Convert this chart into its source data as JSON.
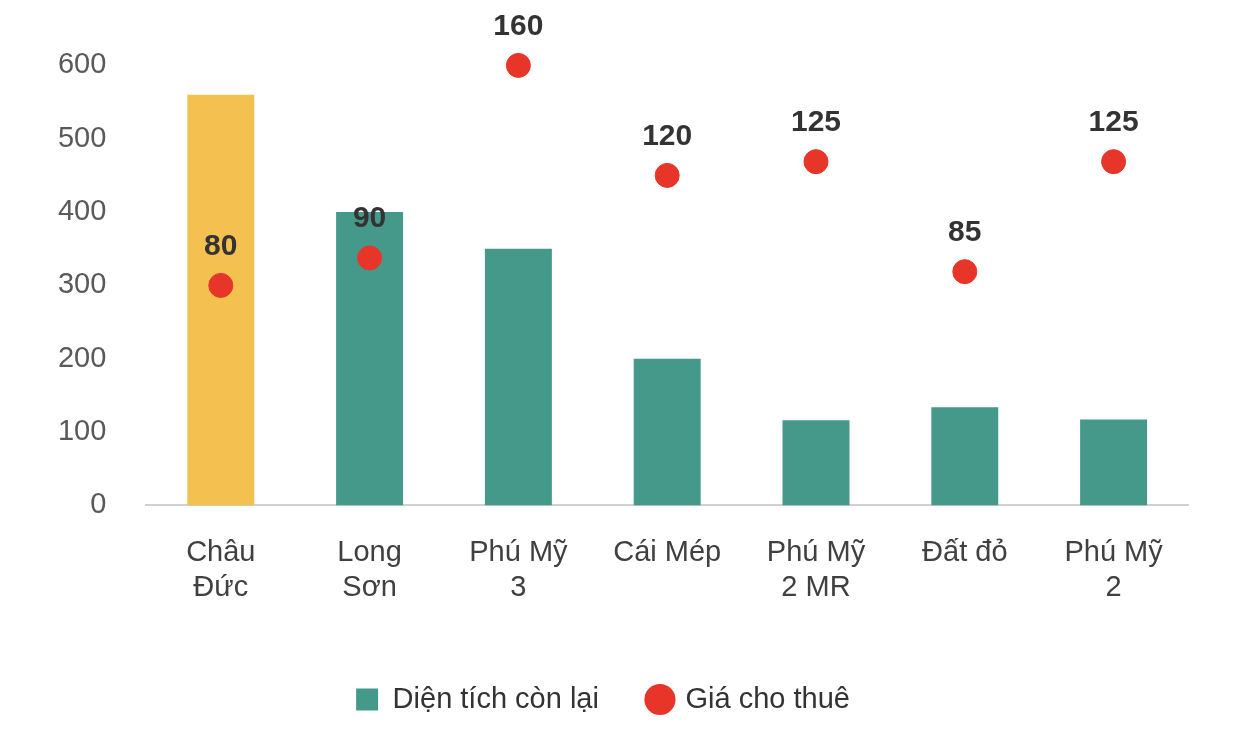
{
  "chart_data": {
    "type": "bar",
    "categories": [
      "Châu\nĐức",
      "Long\nSơn",
      "Phú Mỹ\n3",
      "Cái Mép",
      "Phú Mỹ\n2 MR",
      "Đất đỏ",
      "Phú Mỹ\n2"
    ],
    "series": [
      {
        "name": "Diện tích còn lại",
        "color": "#45998a",
        "colors": [
          "#f4c150",
          "#45998a",
          "#45998a",
          "#45998a",
          "#45998a",
          "#45998a",
          "#45998a"
        ],
        "values": [
          560,
          400,
          350,
          200,
          116,
          134,
          117
        ]
      },
      {
        "name": "Giá cho thuê",
        "type": "scatter",
        "axis": "y2",
        "color": "#e8352a",
        "values": [
          80,
          90,
          160,
          120,
          125,
          85,
          125
        ],
        "value_labels": [
          "80",
          "90",
          "160",
          "120",
          "125",
          "85",
          "125"
        ]
      }
    ],
    "ylim": [
      0,
      600
    ],
    "yticks": [
      0,
      100,
      200,
      300,
      400,
      500,
      600
    ],
    "grid": false,
    "legend": "bottom",
    "marker": "circle"
  }
}
